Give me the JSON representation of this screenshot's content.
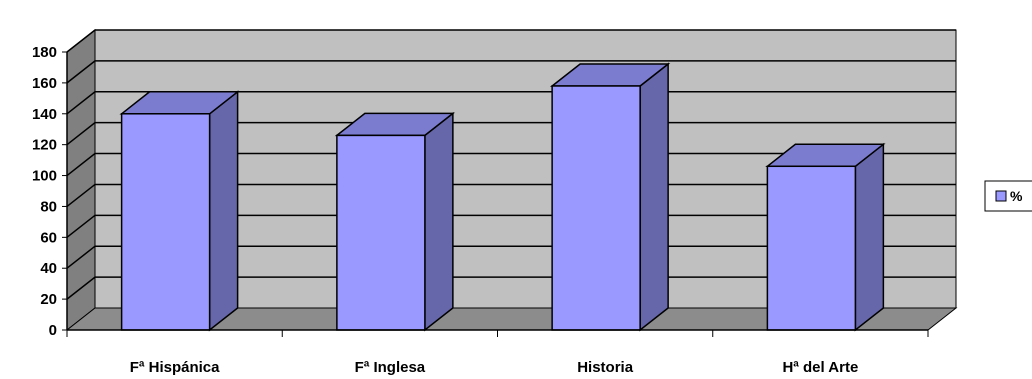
{
  "chart_data": {
    "type": "bar",
    "style": "3d-column",
    "categories": [
      "Fª Hispánica",
      "Fª Inglesa",
      "Historia",
      "Hª del Arte"
    ],
    "series": [
      {
        "name": "%",
        "values": [
          140,
          126,
          158,
          106
        ]
      }
    ],
    "ylim": [
      0,
      180
    ],
    "yticks": [
      "0",
      "20",
      "40",
      "60",
      "80",
      "100",
      "120",
      "140",
      "160",
      "180"
    ],
    "ytick_values": [
      0,
      20,
      40,
      60,
      80,
      100,
      120,
      140,
      160,
      180
    ],
    "grid": true,
    "legend_position": "right",
    "colors": {
      "bar_front": "#9999ff",
      "bar_side": "#6666aa",
      "bar_top": "#7b7bd0",
      "wall": "#c0c0c0",
      "floor": "#8c8c8c",
      "side_wall": "#808080"
    }
  }
}
